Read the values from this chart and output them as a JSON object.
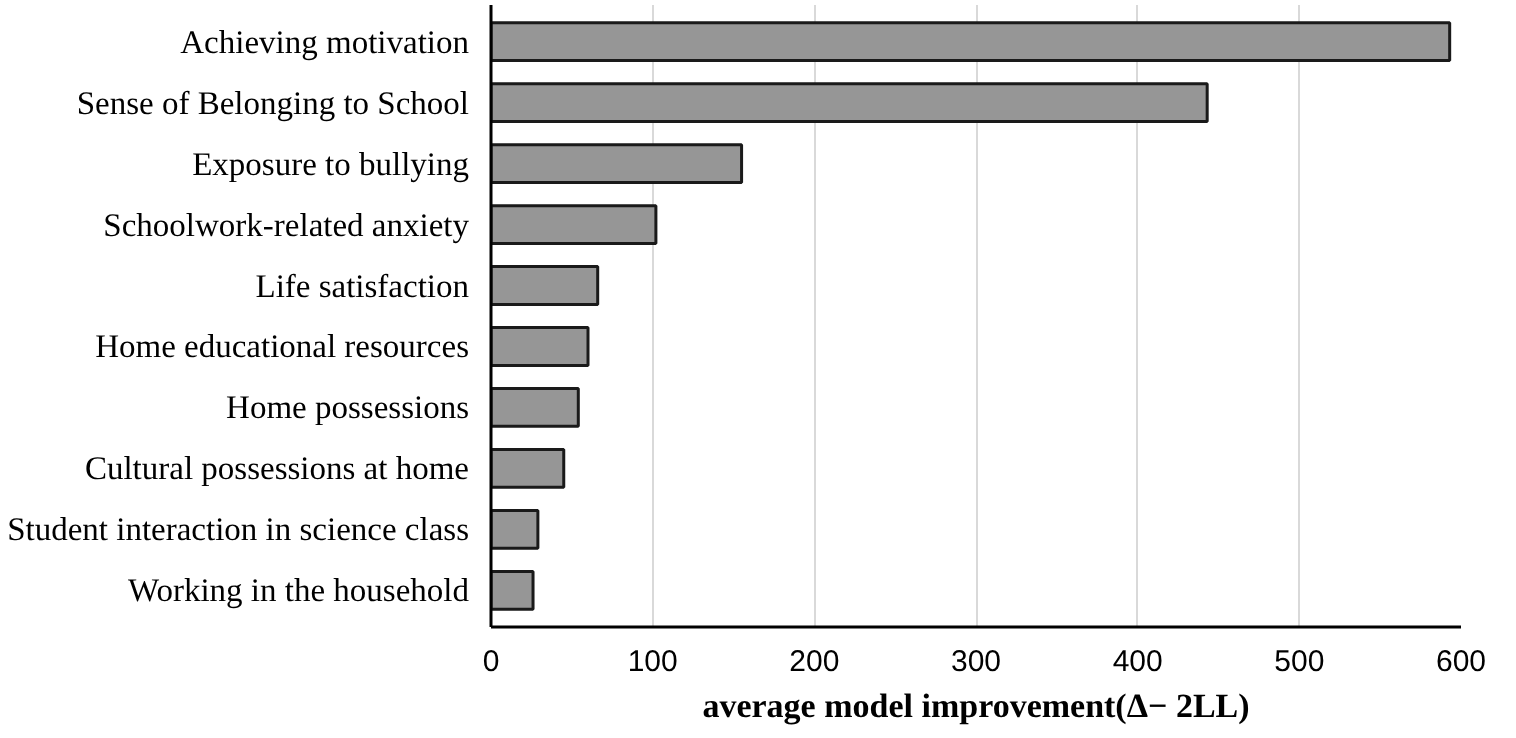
{
  "chart_data": {
    "type": "bar",
    "orientation": "horizontal",
    "xlabel": "average model improvement(Δ− 2LL)",
    "categories": [
      "Achieving motivation",
      "Sense of Belonging to School",
      "Exposure to bullying",
      "Schoolwork-related anxiety",
      "Life satisfaction",
      "Home educational resources",
      "Home possessions",
      "Cultural possessions at home",
      "Student interaction in science class",
      "Working in the household"
    ],
    "values": [
      593,
      443,
      155,
      102,
      66,
      60,
      54,
      45,
      29,
      26
    ],
    "color": "#969696",
    "xlim": [
      0,
      600
    ],
    "xticks": [
      0,
      100,
      200,
      300,
      400,
      500,
      600
    ],
    "grid": "x"
  }
}
